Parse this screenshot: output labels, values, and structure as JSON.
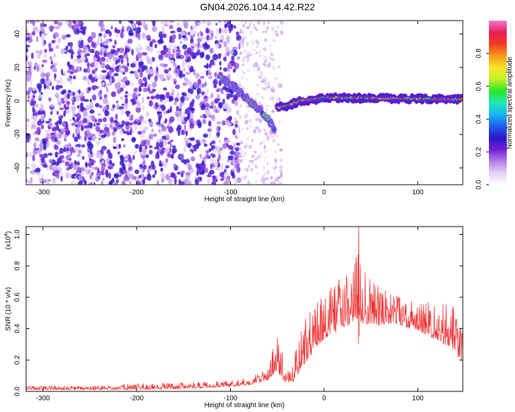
{
  "title": "GN04.2026.104.14.42.R22",
  "chart_data": [
    {
      "type": "heatmap",
      "panel": "spectrogram",
      "xlabel": "Height of straight line (km)",
      "ylabel": "Frequency (Hz)",
      "xlim": [
        -318,
        148
      ],
      "ylim": [
        -50,
        48
      ],
      "xticks": [
        -300,
        -200,
        -100,
        0,
        100
      ],
      "yticks": [
        40,
        20,
        0,
        -20,
        -40
      ],
      "colorbar": {
        "label": "Normalized spectral amplitude",
        "range": [
          0,
          1
        ],
        "ticks": [
          0.0,
          0.2,
          0.4,
          0.6,
          0.8
        ],
        "colors": [
          "#ffffff",
          "#e6d3f5",
          "#b27fe8",
          "#6f1fd6",
          "#2a1ac8",
          "#1f5cf0",
          "#14b8f0",
          "#1ee8b0",
          "#28e828",
          "#c8f028",
          "#f5e628",
          "#f59a1e",
          "#f03c1e",
          "#e81e5a",
          "#f07ad2"
        ]
      },
      "features": [
        {
          "name": "broadband noise",
          "x_range": [
            -318,
            -90
          ],
          "y_range": [
            -50,
            48
          ],
          "amplitude": [
            0.05,
            0.3
          ]
        },
        {
          "name": "descending trace",
          "points": [
            [
              -110,
              14
            ],
            [
              -100,
              10
            ],
            [
              -90,
              5
            ],
            [
              -80,
              0
            ],
            [
              -70,
              -5
            ],
            [
              -60,
              -10
            ],
            [
              -52,
              -18
            ]
          ],
          "amplitude": [
            0.3,
            0.6
          ]
        },
        {
          "name": "steady tone",
          "points": [
            [
              -50,
              -4
            ],
            [
              -40,
              -3
            ],
            [
              -25,
              0
            ],
            [
              -10,
              1
            ],
            [
              0,
              2
            ],
            [
              148,
              1
            ]
          ],
          "amplitude": [
            0.4,
            1.0
          ]
        }
      ]
    },
    {
      "type": "line",
      "panel": "snr",
      "xlabel": "Height of straight line (km)",
      "ylabel": "SNR (10 * v/v)",
      "y_multiplier": "(x10^4)",
      "y_multiplier_base": "(x10",
      "y_multiplier_exp": "4",
      "y_multiplier_close": ")",
      "xlim": [
        -318,
        148
      ],
      "ylim": [
        0,
        1.05
      ],
      "xticks": [
        -300,
        -200,
        -100,
        0,
        100
      ],
      "yticks": [
        0.0,
        0.2,
        0.4,
        0.6,
        0.8,
        1.0
      ],
      "series": [
        {
          "name": "SNR",
          "color": "#f03030",
          "x": [
            -318,
            -300,
            -250,
            -200,
            -150,
            -100,
            -80,
            -60,
            -55,
            -50,
            -45,
            -40,
            -35,
            -30,
            -25,
            -20,
            -10,
            0,
            10,
            20,
            30,
            37,
            40,
            50,
            60,
            80,
            100,
            120,
            140,
            148
          ],
          "envelope_low": [
            0.01,
            0.01,
            0.01,
            0.01,
            0.015,
            0.03,
            0.04,
            0.07,
            0.1,
            0.12,
            0.08,
            0.05,
            0.05,
            0.08,
            0.12,
            0.18,
            0.25,
            0.32,
            0.36,
            0.4,
            0.42,
            0.44,
            0.42,
            0.42,
            0.42,
            0.42,
            0.38,
            0.32,
            0.25,
            0.15
          ],
          "envelope_high": [
            0.035,
            0.04,
            0.04,
            0.05,
            0.06,
            0.07,
            0.09,
            0.15,
            0.28,
            0.38,
            0.3,
            0.12,
            0.15,
            0.28,
            0.4,
            0.48,
            0.56,
            0.64,
            0.7,
            0.76,
            0.8,
            1.05,
            0.8,
            0.72,
            0.66,
            0.62,
            0.6,
            0.56,
            0.56,
            0.5
          ]
        }
      ]
    }
  ]
}
